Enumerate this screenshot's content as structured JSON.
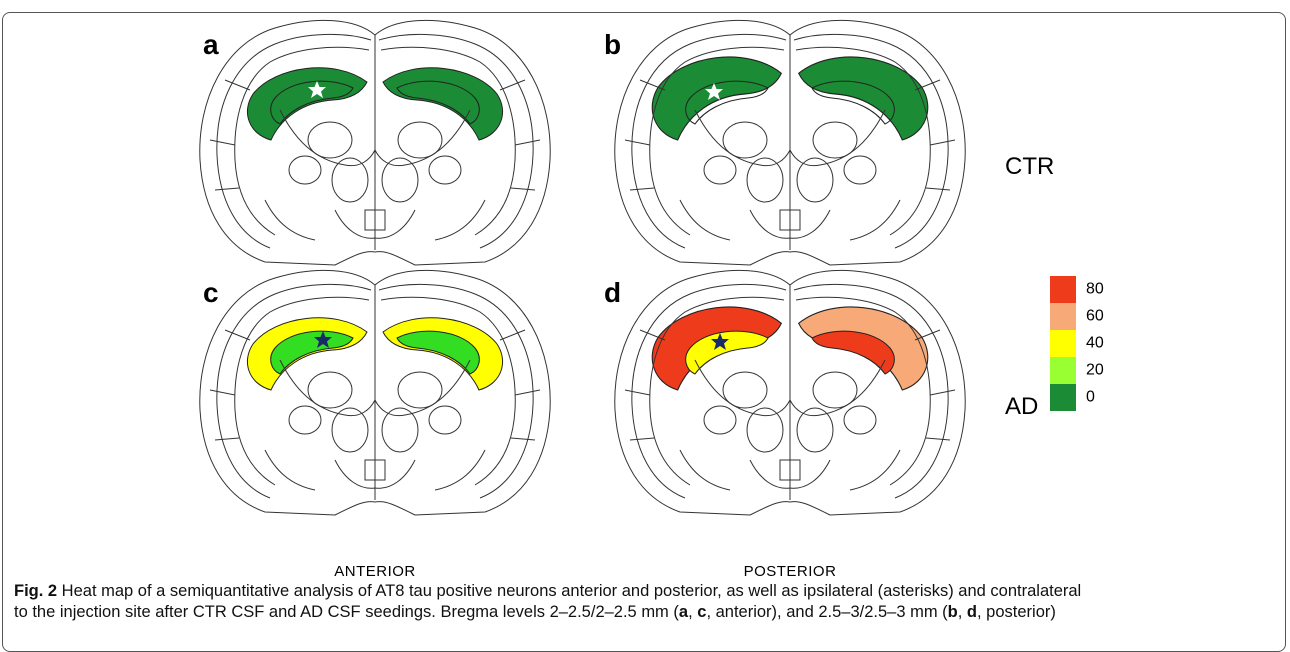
{
  "panels": [
    {
      "label": "a"
    },
    {
      "label": "b"
    },
    {
      "label": "c"
    },
    {
      "label": "d"
    }
  ],
  "rows": [
    "CTR",
    "AD"
  ],
  "columns": [
    "ANTERIOR",
    "POSTERIOR"
  ],
  "legend": [
    {
      "label": "80",
      "color": "#ee3b1c"
    },
    {
      "label": "60",
      "color": "#f8a978"
    },
    {
      "label": "40",
      "color": "#ffff00"
    },
    {
      "label": "20",
      "color": "#99ff33"
    },
    {
      "label": "0",
      "color": "#1b8c35"
    }
  ],
  "caption": [
    [
      {
        "text": "Fig. 2",
        "bold": true
      },
      {
        "text": " Heat map of a semiquantitative analysis of AT8 tau positive neurons anterior and posterior, as well as ipsilateral (asterisks) and contralateral",
        "bold": false
      }
    ],
    [
      {
        "text": "to the injection site after CTR CSF and AD CSF seedings. Bregma levels 2–2.5/2–2.5 mm (",
        "bold": false
      },
      {
        "text": "a",
        "bold": true
      },
      {
        "text": ", ",
        "bold": false
      },
      {
        "text": "c",
        "bold": true
      },
      {
        "text": ", anterior), and 2.5–3/2.5–3 mm (",
        "bold": false
      },
      {
        "text": "b",
        "bold": true
      },
      {
        "text": ", ",
        "bold": false
      },
      {
        "text": "d",
        "bold": true
      },
      {
        "text": ", posterior)",
        "bold": false
      }
    ]
  ]
}
